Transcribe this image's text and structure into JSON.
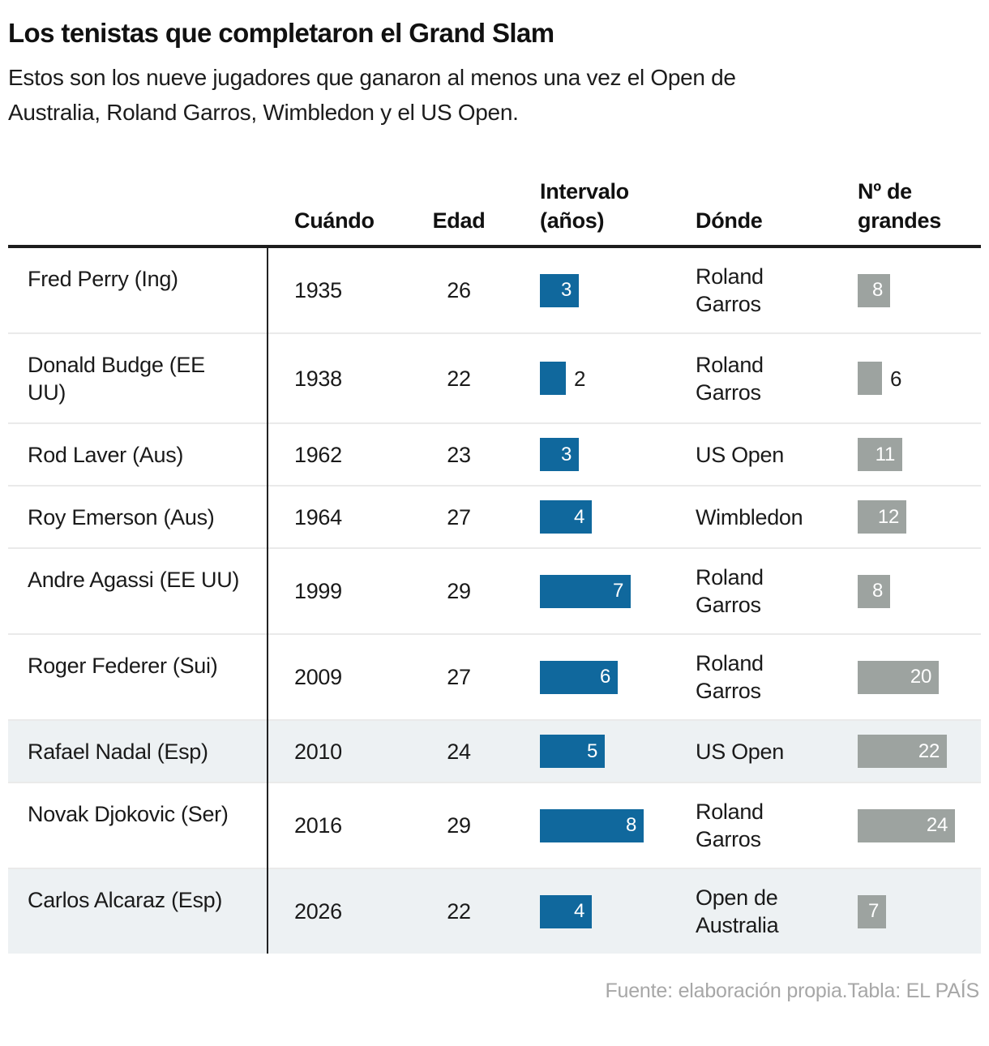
{
  "title": "Los tenistas que completaron el Grand Slam",
  "subtitle": "Estos son los nueve jugadores que ganaron al menos una vez el Open de\nAustralia, Roland Garros, Wimbledon y el US Open.",
  "footer": "Fuente: elaboración propia.Tabla: EL PAÍS",
  "colors": {
    "interval_bar": "#10689D",
    "majors_bar": "#9DA3A0",
    "highlight_row": "#EDF1F3",
    "header_rule": "#1d1d1d"
  },
  "header": {
    "cuando": "Cuándo",
    "edad": "Edad",
    "intervalo": "Intervalo\n(años)",
    "donde": "Dónde",
    "grandes": "Nº de\ngrandes"
  },
  "chart_data": {
    "type": "table",
    "title": "Los tenistas que completaron el Grand Slam",
    "columns": [
      "",
      "Cuándo",
      "Edad",
      "Intervalo (años)",
      "Dónde",
      "Nº de grandes"
    ],
    "bar_axis": {
      "intervalo_max": 8,
      "grandes_max": 24
    },
    "rows": [
      {
        "player": "Fred Perry (Ing)",
        "cuando": "1935",
        "edad": "26",
        "intervalo": 3,
        "donde": "Roland\nGarros",
        "grandes": 8,
        "highlight": false
      },
      {
        "player": "Donald Budge (EE\nUU)",
        "cuando": "1938",
        "edad": "22",
        "intervalo": 2,
        "donde": "Roland\nGarros",
        "grandes": 6,
        "highlight": false
      },
      {
        "player": "Rod Laver (Aus)",
        "cuando": "1962",
        "edad": "23",
        "intervalo": 3,
        "donde": "US Open",
        "grandes": 11,
        "highlight": false
      },
      {
        "player": "Roy Emerson (Aus)",
        "cuando": "1964",
        "edad": "27",
        "intervalo": 4,
        "donde": "Wimbledon",
        "grandes": 12,
        "highlight": false
      },
      {
        "player": "Andre Agassi (EE UU)",
        "cuando": "1999",
        "edad": "29",
        "intervalo": 7,
        "donde": "Roland\nGarros",
        "grandes": 8,
        "highlight": false
      },
      {
        "player": "Roger Federer (Sui)",
        "cuando": "2009",
        "edad": "27",
        "intervalo": 6,
        "donde": "Roland\nGarros",
        "grandes": 20,
        "highlight": false
      },
      {
        "player": "Rafael Nadal (Esp)",
        "cuando": "2010",
        "edad": "24",
        "intervalo": 5,
        "donde": "US Open",
        "grandes": 22,
        "highlight": true
      },
      {
        "player": "Novak Djokovic (Ser)",
        "cuando": "2016",
        "edad": "29",
        "intervalo": 8,
        "donde": "Roland\nGarros",
        "grandes": 24,
        "highlight": false
      },
      {
        "player": "Carlos Alcaraz (Esp)",
        "cuando": "2026",
        "edad": "22",
        "intervalo": 4,
        "donde": "Open de\nAustralia",
        "grandes": 7,
        "highlight": true
      }
    ]
  }
}
